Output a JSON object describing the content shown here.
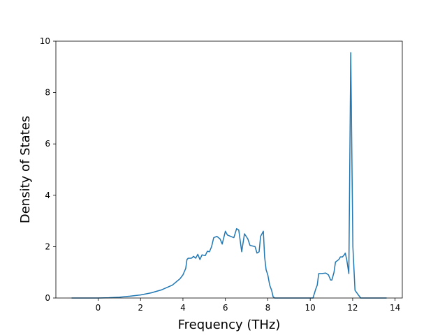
{
  "chart_data": {
    "type": "line",
    "xlabel": "Frequency (THz)",
    "ylabel": "Density of States",
    "xlim": [
      -1.99,
      14.34
    ],
    "ylim": [
      0,
      10
    ],
    "xticks": [
      0,
      2,
      4,
      6,
      8,
      10,
      12,
      14
    ],
    "yticks": [
      0,
      2,
      4,
      6,
      8,
      10
    ],
    "grid": false,
    "series": [
      {
        "color": "#1f77b4",
        "x": [
          -1.25,
          0,
          0.5,
          1,
          1.5,
          2,
          2.5,
          3,
          3.5,
          3.86,
          4.0,
          4.13,
          4.19,
          4.25,
          4.4,
          4.5,
          4.6,
          4.7,
          4.8,
          4.9,
          5.05,
          5.15,
          5.25,
          5.35,
          5.45,
          5.6,
          5.75,
          5.85,
          6.0,
          6.1,
          6.25,
          6.4,
          6.53,
          6.63,
          6.77,
          6.9,
          7.06,
          7.16,
          7.4,
          7.49,
          7.59,
          7.66,
          7.79,
          7.85,
          7.92,
          8.0,
          8.09,
          8.18,
          8.25,
          8.32,
          10.13,
          10.26,
          10.33,
          10.4,
          10.53,
          10.73,
          10.86,
          10.96,
          11.02,
          11.12,
          11.19,
          11.35,
          11.42,
          11.52,
          11.62,
          11.65,
          11.72,
          11.82,
          11.91,
          12.01,
          12.11,
          12.24,
          12.38,
          13.6
        ],
        "values": [
          0,
          0,
          0.01,
          0.03,
          0.07,
          0.12,
          0.2,
          0.32,
          0.5,
          0.75,
          0.9,
          1.15,
          1.5,
          1.55,
          1.55,
          1.62,
          1.55,
          1.7,
          1.5,
          1.68,
          1.65,
          1.82,
          1.8,
          2.0,
          2.35,
          2.4,
          2.3,
          2.1,
          2.6,
          2.45,
          2.4,
          2.35,
          2.7,
          2.65,
          1.8,
          2.5,
          2.3,
          2.05,
          2.0,
          1.75,
          1.8,
          2.4,
          2.6,
          1.6,
          1.1,
          0.9,
          0.5,
          0.3,
          0.05,
          0,
          0,
          0.35,
          0.5,
          0.95,
          0.95,
          0.97,
          0.9,
          0.7,
          0.7,
          1.0,
          1.4,
          1.5,
          1.6,
          1.6,
          1.7,
          1.75,
          1.5,
          0.95,
          9.55,
          2.0,
          0.3,
          0.15,
          0,
          0
        ]
      }
    ]
  }
}
